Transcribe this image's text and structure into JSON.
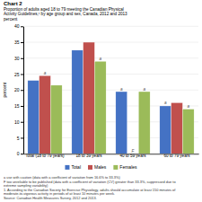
{
  "chart_data": {
    "type": "bar",
    "title": "Chart 2",
    "subtitle": [
      "Proportion of adults aged 18 to 79 meeting the Canadian Physical",
      "Activity Guidelines,¹ by age group and sex, Canada, 2012 and 2013"
    ],
    "ylabel": "percent",
    "categories": [
      "Total (18 to 79 years)",
      "18 to 39 years",
      "40 to 59 years",
      "60 to 79 years"
    ],
    "series": [
      {
        "name": "Total",
        "color": "#4472C4",
        "values": [
          23.0,
          32.5,
          19.5,
          15.0
        ],
        "annotations": [
          null,
          null,
          "a",
          "a"
        ]
      },
      {
        "name": "Males",
        "color": "#C0504D",
        "values": [
          24.5,
          35.0,
          0.0,
          16.0
        ],
        "annotations": [
          "a",
          null,
          "F",
          null
        ]
      },
      {
        "name": "Females",
        "color": "#9BBB59",
        "values": [
          21.5,
          29.0,
          19.5,
          14.0
        ],
        "annotations": [
          null,
          "a",
          "a",
          "a"
        ]
      }
    ],
    "ylim": [
      0,
      40
    ],
    "yticks": [
      0,
      5,
      10,
      15,
      20,
      25,
      30,
      35,
      40
    ],
    "grid": true,
    "legend": "bottom",
    "notes": [
      "a use with caution (data with a coefficient of variation from 16.6% to 33.3%)",
      "F too unreliable to be published (data with a coefficient of variation (CV) greater than 33.3%, suppressed due to",
      "extreme sampling variability)",
      "1. According to the Canadian Society for Exercise Physiology, adults should accumulate at least 150 minutes of",
      "moderate-to-vigorous activity in periods of at least 10 minutes per week.",
      "Source: Canadian Health Measures Survey, 2012 and 2013."
    ]
  }
}
